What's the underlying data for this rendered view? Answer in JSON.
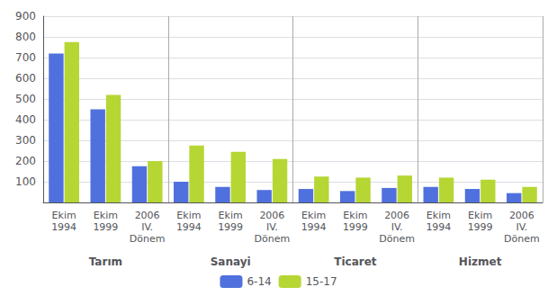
{
  "chart_data": {
    "type": "bar",
    "categories": [
      "Ekim\n1994",
      "Ekim\n1999",
      "2006\nIV.\nDönem",
      "Ekim\n1994",
      "Ekim\n1999",
      "2006\nIV.\nDönem",
      "Ekim\n1994",
      "Ekim\n1999",
      "2006\nIV.\nDönem",
      "Ekim\n1994",
      "Ekim\n1999",
      "2006\nIV.\nDönem"
    ],
    "groups": [
      "Tarım",
      "Sanayi",
      "Ticaret",
      "Hizmet"
    ],
    "series": [
      {
        "name": "6-14",
        "values": [
          720,
          450,
          175,
          100,
          75,
          60,
          65,
          55,
          70,
          75,
          65,
          45
        ]
      },
      {
        "name": "15-17",
        "values": [
          775,
          520,
          200,
          275,
          245,
          210,
          125,
          120,
          130,
          120,
          110,
          75
        ]
      }
    ],
    "ylim": [
      0,
      900
    ],
    "yticks": [
      100,
      200,
      300,
      400,
      500,
      600,
      700,
      800,
      900
    ],
    "grid": true,
    "legend": "bottom"
  }
}
